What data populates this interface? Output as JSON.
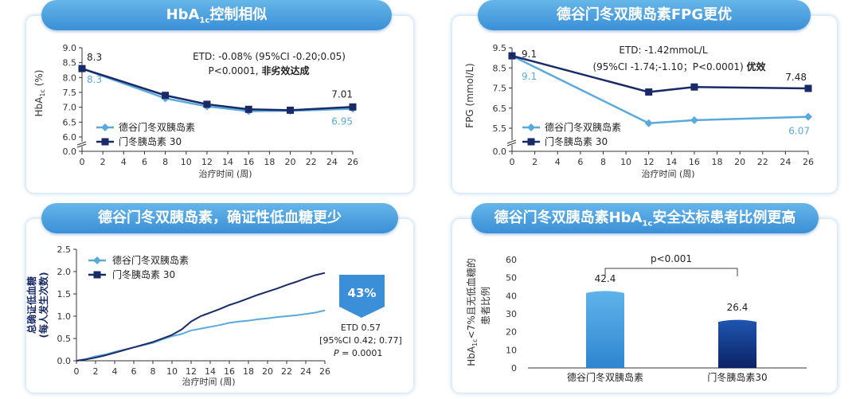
{
  "panels": {
    "p1": {
      "title_pre": "HbA",
      "title_sub": "1c",
      "title_post": "控制相似",
      "ylabel_pre": "HbA",
      "ylabel_sub": "1c",
      "ylabel_post": " (%)",
      "xlabel": "治疗时间 (周)",
      "annotation_line1": "ETD: -0.08% (95%CI -0.20;0.05)",
      "annotation_line2a": "P<0.0001, ",
      "annotation_line2b": "非劣效达成"
    },
    "p2": {
      "title": "德谷门冬双胰岛素FPG更优",
      "ylabel": "FPG (mmol/L)",
      "xlabel": "治疗时间 (周)",
      "annotation_line1": "ETD: -1.42mmoL/L",
      "annotation_line2a": "(95%CI -1.74;-1.10；P<0.0001) ",
      "annotation_line2b": "优效"
    },
    "p3": {
      "title": "德谷门冬双胰岛素，确证性低血糖更少",
      "ylabel_line1": "总确证低血糖",
      "ylabel_line2": "(每人发生次数)",
      "xlabel": "治疗时间 (周)",
      "badge": "43%",
      "etd_line1": "ETD  0.57",
      "etd_line2": "[95%CI 0.42; 0.77]",
      "etd_p": "P",
      "etd_line3": "= 0.0001"
    },
    "p4": {
      "title_pre": "德谷门冬双胰岛素HbA",
      "title_sub": "1c",
      "title_post": "安全达标患者比例更高",
      "ylabel_pre": "HbA",
      "ylabel_sub": "1c",
      "ylabel_post": "<7%且无低血糖的",
      "ylabel_line2": "患者比例",
      "pvalue": "p<0.001"
    }
  },
  "colors": {
    "light": "#5aa9dc",
    "dark": "#1a2a68",
    "bar_light_top": "#5fb3ea",
    "bar_light_bottom": "#2f86d0",
    "bar_dark_top": "#1f56b0",
    "bar_dark_bottom": "#0c2266"
  },
  "chart_data": [
    {
      "type": "line",
      "x": [
        0,
        8,
        12,
        16,
        20,
        26
      ],
      "xticks": [
        "0",
        "2",
        "4",
        "6",
        "8",
        "10",
        "12",
        "14",
        "16",
        "18",
        "20",
        "22",
        "24",
        "26"
      ],
      "yticks": [
        "0.0",
        "6.0",
        "6.5",
        "7.0",
        "7.5",
        "8.0",
        "8.5",
        "9.0"
      ],
      "ylim": [
        6.0,
        9.0
      ],
      "axis_break": true,
      "series": [
        {
          "name": "德谷门冬双胰岛素",
          "values": [
            8.3,
            7.3,
            7.03,
            6.87,
            6.88,
            6.95
          ]
        },
        {
          "name": "门冬胰岛素 30",
          "values": [
            8.3,
            7.4,
            7.1,
            6.93,
            6.9,
            7.01
          ]
        }
      ],
      "data_labels": {
        "start_dark": "8.3",
        "start_light": "8.3",
        "end_dark": "7.01",
        "end_light": "6.95"
      }
    },
    {
      "type": "line",
      "x": [
        0,
        12,
        16,
        26
      ],
      "xticks": [
        "0",
        "2",
        "4",
        "6",
        "8",
        "10",
        "12",
        "14",
        "16",
        "18",
        "20",
        "22",
        "24",
        "26"
      ],
      "yticks": [
        "0.0",
        "5.5",
        "6.5",
        "7.5",
        "8.5",
        "9.5"
      ],
      "ylim": [
        5.0,
        9.5
      ],
      "axis_break": true,
      "series": [
        {
          "name": "德谷门冬双胰岛素",
          "values": [
            9.1,
            5.75,
            5.9,
            6.07
          ]
        },
        {
          "name": "门冬胰岛素 30",
          "values": [
            9.1,
            7.3,
            7.55,
            7.48
          ]
        }
      ],
      "data_labels": {
        "start_dark": "9.1",
        "start_light": "9.1",
        "end_dark": "7.48",
        "end_light": "6.07"
      }
    },
    {
      "type": "line",
      "xticks": [
        "0",
        "2",
        "4",
        "6",
        "8",
        "10",
        "12",
        "14",
        "16",
        "18",
        "20",
        "22",
        "24",
        "26"
      ],
      "yticks": [
        "0.0",
        "0.5",
        "1.0",
        "1.5",
        "2.0",
        "2.5"
      ],
      "ylim": [
        0,
        2.5
      ],
      "xlim": [
        0,
        26
      ],
      "series": [
        {
          "name": "德谷门冬双胰岛素",
          "x": [
            0,
            1,
            2,
            3,
            4,
            5,
            6,
            7,
            8,
            9,
            10,
            11,
            12,
            13,
            14,
            15,
            16,
            17,
            18,
            19,
            20,
            21,
            22,
            23,
            24,
            25,
            26
          ],
          "values": [
            0,
            0.04,
            0.1,
            0.14,
            0.2,
            0.25,
            0.3,
            0.35,
            0.4,
            0.48,
            0.55,
            0.6,
            0.68,
            0.72,
            0.76,
            0.8,
            0.85,
            0.88,
            0.9,
            0.93,
            0.95,
            0.98,
            1.0,
            1.02,
            1.05,
            1.08,
            1.13
          ]
        },
        {
          "name": "门冬胰岛素 30",
          "x": [
            0,
            1,
            2,
            3,
            4,
            5,
            6,
            7,
            8,
            9,
            10,
            11,
            12,
            13,
            14,
            15,
            16,
            17,
            18,
            19,
            20,
            21,
            22,
            23,
            24,
            25,
            26
          ],
          "values": [
            0,
            0.03,
            0.07,
            0.12,
            0.18,
            0.24,
            0.3,
            0.36,
            0.42,
            0.5,
            0.58,
            0.7,
            0.88,
            1.0,
            1.08,
            1.16,
            1.25,
            1.32,
            1.4,
            1.48,
            1.55,
            1.62,
            1.7,
            1.77,
            1.85,
            1.92,
            1.97
          ]
        }
      ]
    },
    {
      "type": "bar",
      "categories": [
        "德谷门冬双胰岛素",
        "门冬胰岛素30"
      ],
      "values": [
        42.4,
        26.4
      ],
      "value_labels": [
        "42.4",
        "26.4"
      ],
      "yticks": [
        "0",
        "10",
        "20",
        "30",
        "40",
        "50",
        "60"
      ],
      "ylim": [
        0,
        60
      ]
    }
  ]
}
